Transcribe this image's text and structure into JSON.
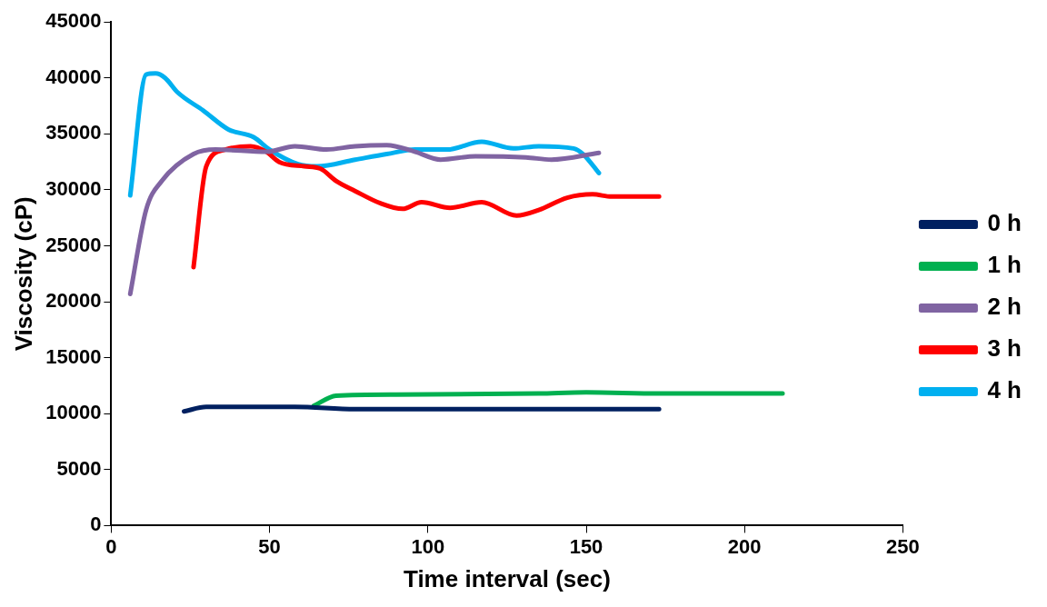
{
  "chart_data": {
    "type": "line",
    "xlabel": "Time interval (sec)",
    "ylabel": "Viscosity (cP)",
    "xlim": [
      0,
      250
    ],
    "xticks": [
      0,
      50,
      100,
      150,
      200,
      250
    ],
    "ylim": [
      0,
      45000
    ],
    "yticks": [
      0,
      5000,
      10000,
      15000,
      20000,
      25000,
      30000,
      35000,
      40000,
      45000
    ],
    "grid": false,
    "legend": "right",
    "marker": "none",
    "line_style": "solid",
    "series": [
      {
        "name": "0 h",
        "color": "#002060",
        "x": [
          23,
          30,
          58,
          77,
          103,
          135,
          150,
          173
        ],
        "values": [
          10200,
          10600,
          10600,
          10400,
          10400,
          10400,
          10400,
          10400
        ]
      },
      {
        "name": "1 h",
        "color": "#00b050",
        "x": [
          64,
          71,
          90,
          135,
          150,
          173,
          212
        ],
        "values": [
          10700,
          11600,
          11700,
          11800,
          11900,
          11800,
          11800
        ]
      },
      {
        "name": "2 h",
        "color": "#8064a2",
        "x": [
          6,
          11,
          16,
          26,
          33,
          49,
          58,
          68,
          77,
          87,
          96,
          104,
          115,
          131,
          139,
          154
        ],
        "values": [
          20700,
          28200,
          30800,
          33200,
          33600,
          33400,
          33900,
          33600,
          33900,
          34000,
          33400,
          32700,
          33000,
          32900,
          32700,
          33300
        ]
      },
      {
        "name": "3 h",
        "color": "#ff0000",
        "x": [
          26,
          30,
          36,
          44,
          49,
          53,
          61,
          66,
          71,
          77,
          85,
          92,
          98,
          107,
          117,
          128,
          135,
          144,
          152,
          158,
          173
        ],
        "values": [
          23100,
          32100,
          33600,
          33900,
          33400,
          32500,
          32100,
          31900,
          30800,
          29900,
          28800,
          28300,
          28900,
          28400,
          28900,
          27700,
          28200,
          29300,
          29600,
          29400,
          29400
        ]
      },
      {
        "name": "4 h",
        "color": "#00b0f0",
        "x": [
          6,
          11,
          14,
          17,
          21,
          29,
          37,
          45,
          50,
          59,
          65,
          77,
          87,
          96,
          106,
          117,
          127,
          135,
          146,
          149,
          154
        ],
        "values": [
          29500,
          40300,
          40400,
          40000,
          38700,
          37100,
          35400,
          34700,
          33600,
          32300,
          32100,
          32700,
          33200,
          33600,
          33600,
          34300,
          33700,
          33900,
          33700,
          33200,
          31500
        ]
      }
    ]
  }
}
